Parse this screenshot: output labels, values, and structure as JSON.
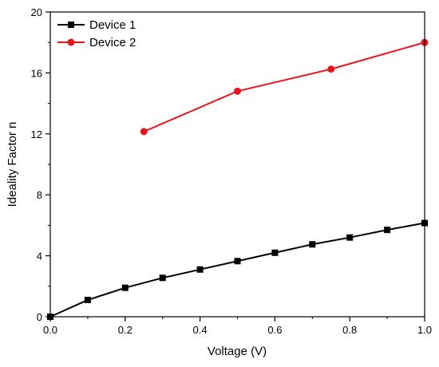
{
  "chart_data": {
    "type": "line",
    "title": "",
    "xlabel": "Voltage (V)",
    "ylabel": "Ideality Factor n",
    "xlim": [
      0,
      1.0
    ],
    "ylim": [
      0,
      20
    ],
    "x_ticks": [
      0.0,
      0.2,
      0.4,
      0.6,
      0.8,
      1.0
    ],
    "x_tick_labels": [
      "0.0",
      "0.2",
      "0.4",
      "0.6",
      "0.8",
      "1.0"
    ],
    "y_ticks": [
      0,
      4,
      8,
      12,
      16,
      20
    ],
    "y_tick_labels": [
      "0",
      "4",
      "8",
      "12",
      "16",
      "20"
    ],
    "grid": false,
    "legend_position": "top-left",
    "series": [
      {
        "name": "Device 1",
        "color": "#000000",
        "marker": "square",
        "x": [
          0.0,
          0.1,
          0.2,
          0.3,
          0.4,
          0.5,
          0.6,
          0.7,
          0.8,
          0.9,
          1.0
        ],
        "y": [
          0.0,
          1.1,
          1.9,
          2.55,
          3.1,
          3.65,
          4.2,
          4.75,
          5.2,
          5.7,
          6.15
        ]
      },
      {
        "name": "Device 2",
        "color": "#e8141c",
        "marker": "circle",
        "x": [
          0.25,
          0.5,
          0.75,
          1.0
        ],
        "y": [
          12.15,
          14.8,
          16.25,
          18.0
        ]
      }
    ]
  }
}
